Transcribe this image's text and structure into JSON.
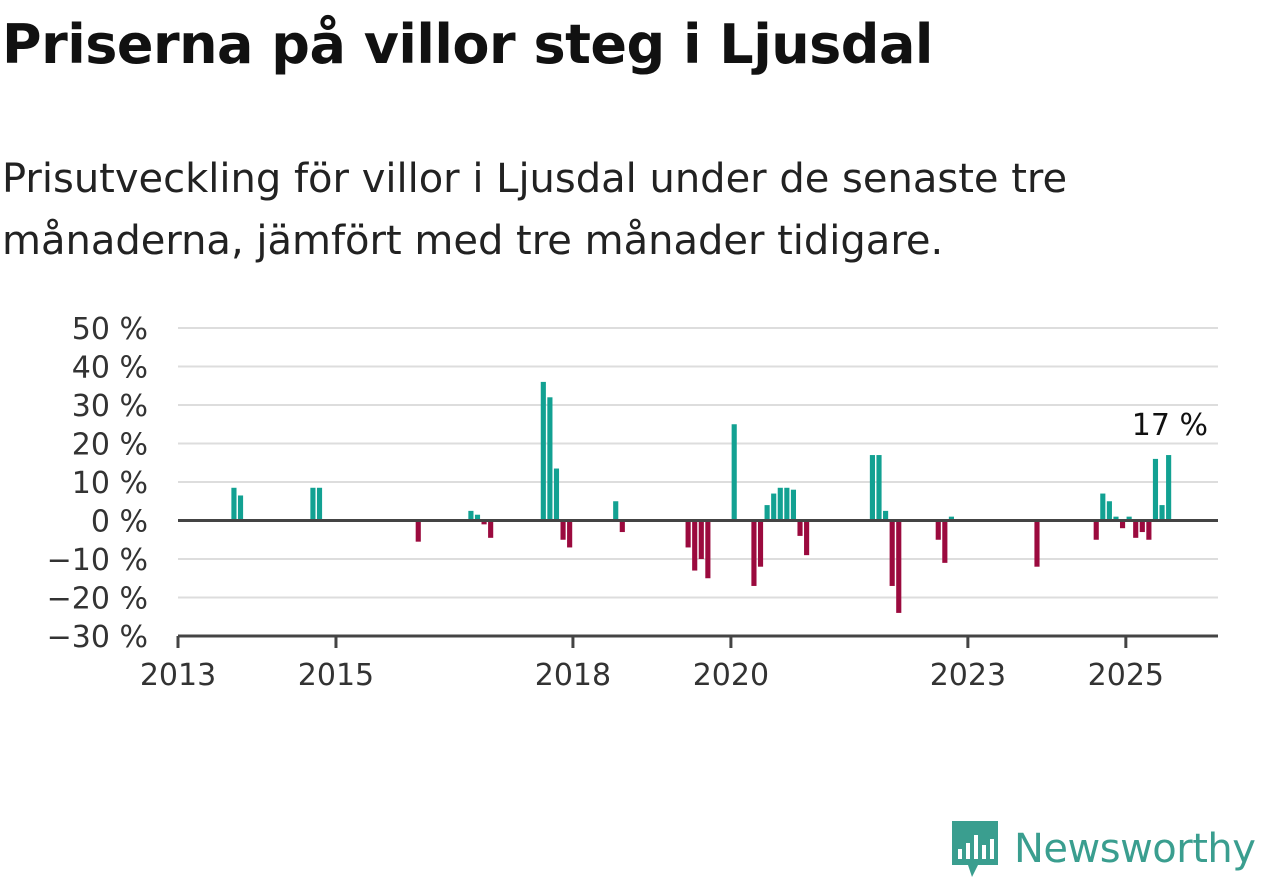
{
  "title": "Priserna på villor steg i Ljusdal",
  "subtitle": "Prisutveckling för villor i Ljusdal under de senaste tre månaderna, jämfört med tre månader tidigare.",
  "brand": {
    "name": "Newsworthy",
    "icon": "newsworthy-logo-icon",
    "color": "#3a9e8f"
  },
  "chart_data": {
    "type": "bar",
    "title": "",
    "xlabel": "",
    "ylabel": "",
    "ylim": [
      -30,
      50
    ],
    "xlim": [
      "2013-01",
      "2026-03"
    ],
    "yticks": [
      -30,
      -20,
      -10,
      0,
      10,
      20,
      30,
      40,
      50
    ],
    "ytick_labels": [
      "−30 %",
      "−20 %",
      "−10 %",
      "0 %",
      "10 %",
      "20 %",
      "30 %",
      "40 %",
      "50 %"
    ],
    "xticks": [
      "2013-01",
      "2015-01",
      "2018-01",
      "2020-01",
      "2023-01",
      "2025-01"
    ],
    "xtick_labels": [
      "2013",
      "2015",
      "2018",
      "2020",
      "2023",
      "2025"
    ],
    "grid": true,
    "colors": {
      "positive": "#12a192",
      "negative": "#9b0a3e",
      "grid": "#dddddd",
      "axis": "#444444"
    },
    "annotation": {
      "x": "2025-06",
      "value": 17,
      "label": "17 %"
    },
    "points": [
      {
        "x": "2013-09",
        "value": 8.5
      },
      {
        "x": "2013-10",
        "value": 6.5
      },
      {
        "x": "2014-09",
        "value": 8.5
      },
      {
        "x": "2014-10",
        "value": 8.5
      },
      {
        "x": "2016-01",
        "value": -5.5
      },
      {
        "x": "2016-09",
        "value": 2.5
      },
      {
        "x": "2016-10",
        "value": 1.5
      },
      {
        "x": "2016-11",
        "value": -1
      },
      {
        "x": "2016-12",
        "value": -4.5
      },
      {
        "x": "2017-08",
        "value": 36
      },
      {
        "x": "2017-09",
        "value": 32
      },
      {
        "x": "2017-10",
        "value": 13.5
      },
      {
        "x": "2017-11",
        "value": -5
      },
      {
        "x": "2017-12",
        "value": -7
      },
      {
        "x": "2018-07",
        "value": 5
      },
      {
        "x": "2018-08",
        "value": -3
      },
      {
        "x": "2019-06",
        "value": -7
      },
      {
        "x": "2019-07",
        "value": -13
      },
      {
        "x": "2019-08",
        "value": -10
      },
      {
        "x": "2019-09",
        "value": -15
      },
      {
        "x": "2020-01",
        "value": 25
      },
      {
        "x": "2020-04",
        "value": -17
      },
      {
        "x": "2020-05",
        "value": -12
      },
      {
        "x": "2020-06",
        "value": 4
      },
      {
        "x": "2020-07",
        "value": 7
      },
      {
        "x": "2020-08",
        "value": 8.5
      },
      {
        "x": "2020-09",
        "value": 8.5
      },
      {
        "x": "2020-10",
        "value": 8
      },
      {
        "x": "2020-11",
        "value": -4
      },
      {
        "x": "2020-12",
        "value": -9
      },
      {
        "x": "2021-10",
        "value": 17
      },
      {
        "x": "2021-11",
        "value": 17
      },
      {
        "x": "2021-12",
        "value": 2.5
      },
      {
        "x": "2022-01",
        "value": -17
      },
      {
        "x": "2022-02",
        "value": -24
      },
      {
        "x": "2022-08",
        "value": -5
      },
      {
        "x": "2022-09",
        "value": -11
      },
      {
        "x": "2022-10",
        "value": 1
      },
      {
        "x": "2023-11",
        "value": -12
      },
      {
        "x": "2024-08",
        "value": -5
      },
      {
        "x": "2024-09",
        "value": 7
      },
      {
        "x": "2024-10",
        "value": 5
      },
      {
        "x": "2024-11",
        "value": 1
      },
      {
        "x": "2024-12",
        "value": -2
      },
      {
        "x": "2025-01",
        "value": 1
      },
      {
        "x": "2025-02",
        "value": -4.5
      },
      {
        "x": "2025-03",
        "value": -3
      },
      {
        "x": "2025-04",
        "value": -5
      },
      {
        "x": "2025-05",
        "value": 16
      },
      {
        "x": "2025-06",
        "value": 4
      },
      {
        "x": "2025-07",
        "value": 17
      }
    ]
  }
}
